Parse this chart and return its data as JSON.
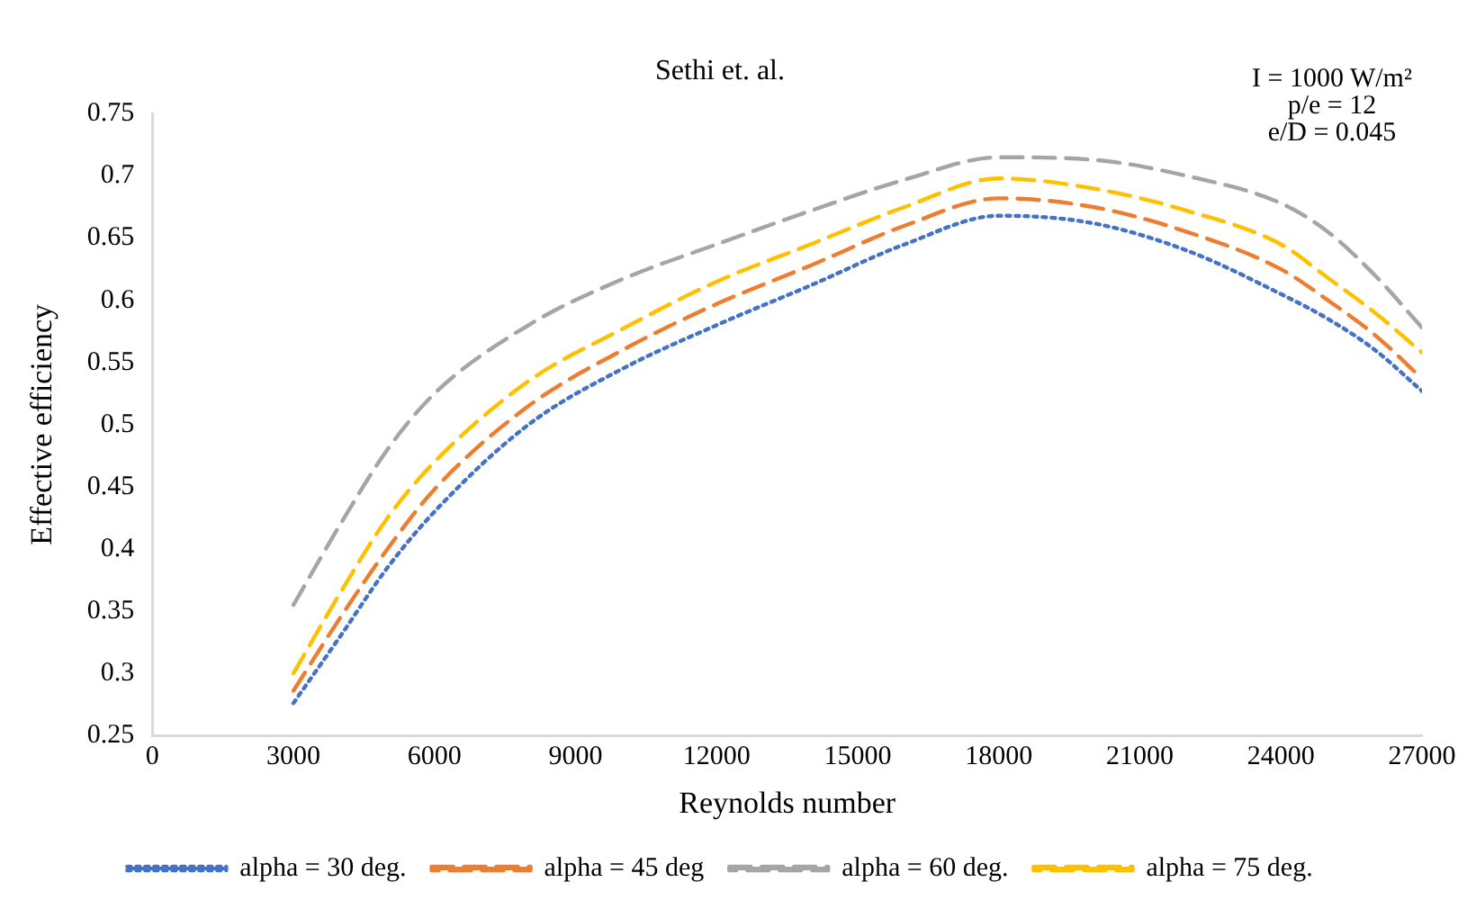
{
  "chart_data": {
    "type": "line",
    "title": "Sethi et. al.",
    "xlabel": "Reynolds number",
    "ylabel": "Effective efficiency",
    "annotations": [
      "I = 1000 W/m²",
      "p/e = 12",
      "e/D = 0.045"
    ],
    "x": [
      3000,
      4000,
      5000,
      6000,
      8000,
      10000,
      12000,
      14000,
      16000,
      18000,
      20000,
      22000,
      24000,
      25000,
      26000,
      27000
    ],
    "series": [
      {
        "name": "alpha = 30 deg.",
        "color": "#4472c4",
        "line_style": "dotted",
        "values": [
          0.276,
          0.33,
          0.385,
          0.43,
          0.5,
          0.545,
          0.58,
          0.612,
          0.645,
          0.668,
          0.662,
          0.64,
          0.605,
          0.585,
          0.56,
          0.527
        ]
      },
      {
        "name": "alpha = 45 deg",
        "color": "#ed7d31",
        "line_style": "dashed",
        "values": [
          0.286,
          0.345,
          0.4,
          0.448,
          0.515,
          0.56,
          0.597,
          0.628,
          0.66,
          0.682,
          0.675,
          0.655,
          0.625,
          0.6,
          0.572,
          0.537
        ]
      },
      {
        "name": "alpha = 60 deg.",
        "color": "#a5a5a5",
        "line_style": "dashed",
        "values": [
          0.355,
          0.42,
          0.48,
          0.525,
          0.58,
          0.617,
          0.645,
          0.672,
          0.697,
          0.715,
          0.713,
          0.7,
          0.678,
          0.655,
          0.62,
          0.578
        ]
      },
      {
        "name": "alpha = 75 deg.",
        "color": "#ffc000",
        "line_style": "dashed",
        "values": [
          0.3,
          0.365,
          0.425,
          0.47,
          0.535,
          0.577,
          0.615,
          0.645,
          0.675,
          0.698,
          0.69,
          0.672,
          0.645,
          0.618,
          0.59,
          0.558
        ]
      }
    ],
    "xlim": [
      0,
      27000
    ],
    "xticks": [
      0,
      3000,
      6000,
      9000,
      12000,
      15000,
      18000,
      21000,
      24000,
      27000
    ],
    "ylim": [
      0.25,
      0.75
    ],
    "yticks": [
      0.25,
      0.3,
      0.35,
      0.4,
      0.45,
      0.5,
      0.55,
      0.6,
      0.65,
      0.7,
      0.75
    ],
    "grid": false,
    "legend": "bottom",
    "marker": "none"
  }
}
